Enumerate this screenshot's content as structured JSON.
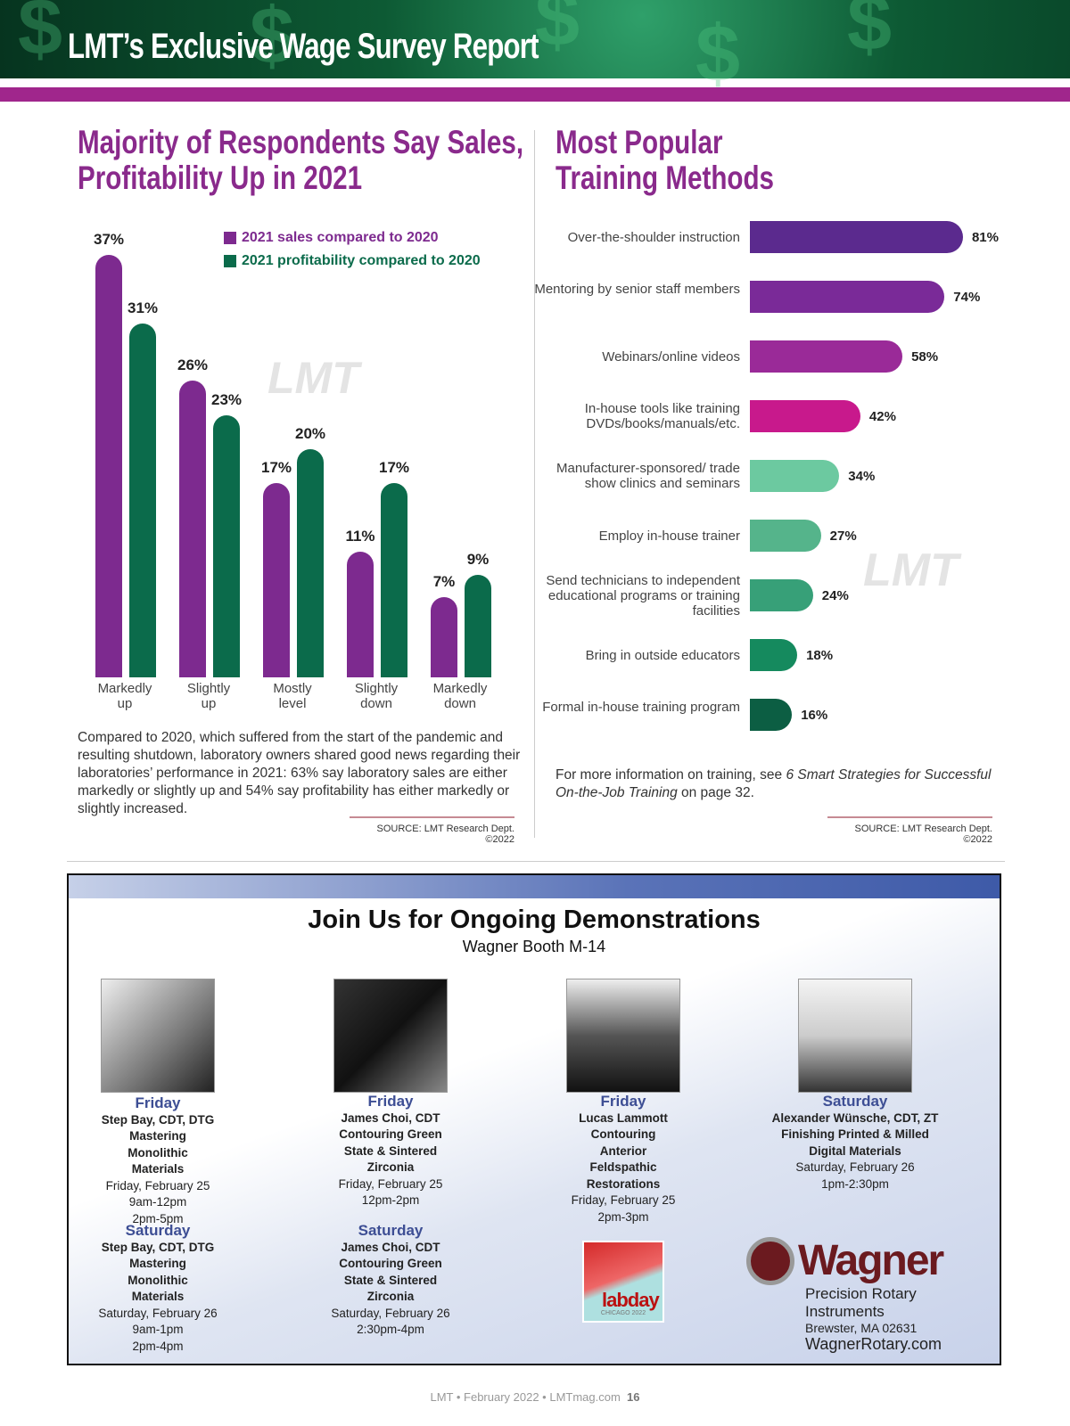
{
  "header": {
    "title": "LMT’s Exclusive Wage Survey Report"
  },
  "left": {
    "title_line1": "Majority of Respondents Say Sales,",
    "title_line2": "Profitability Up in 2021",
    "paragraph": "Compared to 2020, which suffered from the start of the pandemic and resulting shutdown, laboratory owners shared good news regarding their laboratories’ performance in 2021: 63% say laboratory sales are either markedly or slightly up and 54% say profitability has either markedly or slightly increased.",
    "source": "SOURCE: LMT Research Dept. ©2022",
    "watermark": "LMT"
  },
  "right": {
    "title_line1": "Most Popular",
    "title_line2": "Training Methods",
    "note_prefix": "For more information on training, see ",
    "note_italic": "6 Smart Strategies for Successful On-the-Job Training",
    "note_suffix": " on page 32.",
    "source": "SOURCE: LMT Research Dept. ©2022",
    "watermark": "LMT"
  },
  "chart_data": [
    {
      "type": "bar",
      "title": "Majority of Respondents Say Sales, Profitability Up in 2021",
      "categories": [
        "Markedly up",
        "Slightly up",
        "Mostly level",
        "Slightly down",
        "Markedly down"
      ],
      "series": [
        {
          "name": "2021 sales compared to 2020",
          "color": "#7d2a8f",
          "values": [
            37,
            26,
            17,
            11,
            7
          ],
          "labels": [
            "37%",
            "26%",
            "17%",
            "11%",
            "7%"
          ]
        },
        {
          "name": "2021 profitability compared to 2020",
          "color": "#0b6b4b",
          "values": [
            31,
            23,
            20,
            17,
            9
          ],
          "labels": [
            "31%",
            "23%",
            "20%",
            "17%",
            "9%"
          ]
        }
      ],
      "ylim": [
        0,
        40
      ],
      "legend": "top-right",
      "grid": false
    },
    {
      "type": "bar",
      "orientation": "horizontal",
      "title": "Most Popular Training Methods",
      "categories": [
        "Over-the-shoulder instruction",
        "Mentoring by senior staff members",
        "Webinars/online videos",
        "In-house tools like training DVDs/books/manuals/etc.",
        "Manufacturer-sponsored/ trade show clinics and seminars",
        "Employ in-house trainer",
        "Send technicians to independent educational programs or training facilities",
        "Bring in outside educators",
        "Formal in-house training program"
      ],
      "values": [
        81,
        74,
        58,
        42,
        34,
        27,
        24,
        18,
        16
      ],
      "labels": [
        "81%",
        "74%",
        "58%",
        "42%",
        "34%",
        "27%",
        "24%",
        "18%",
        "16%"
      ],
      "colors": [
        "#5b2a8e",
        "#7a2a98",
        "#9a2a98",
        "#c8198c",
        "#6cc9a0",
        "#55b48b",
        "#37a078",
        "#158a5e",
        "#0c5e43"
      ],
      "xlim": [
        0,
        100
      ]
    }
  ],
  "ad": {
    "title": "Join Us for Ongoing Demonstrations",
    "subtitle": "Wagner Booth M-14",
    "sessions": [
      {
        "day": "Friday",
        "presenter": "Step Bay, CDT, DTG",
        "topic": "Mastering Monolithic Materials",
        "date": "Friday, February 25",
        "times": [
          "9am-12pm",
          "2pm-5pm"
        ]
      },
      {
        "day": "Friday",
        "presenter": "James Choi, CDT",
        "topic": "Contouring Green State & Sintered Zirconia",
        "date": "Friday, February 25",
        "times": [
          "12pm-2pm"
        ]
      },
      {
        "day": "Friday",
        "presenter": "Lucas Lammott",
        "topic": "Contouring Anterior Feldspathic Restorations",
        "date": "Friday, February 25",
        "times": [
          "2pm-3pm"
        ]
      },
      {
        "day": "Saturday",
        "presenter": "Alexander Wünsche, CDT, ZT",
        "topic": "Finishing Printed & Milled Digital Materials",
        "date": "Saturday, February 26",
        "times": [
          "1pm-2:30pm"
        ]
      },
      {
        "day": "Saturday",
        "presenter": "Step Bay, CDT, DTG",
        "topic": "Mastering Monolithic Materials",
        "date": "Saturday, February 26",
        "times": [
          "9am-1pm",
          "2pm-4pm"
        ]
      },
      {
        "day": "Saturday",
        "presenter": "James Choi, CDT",
        "topic": "Contouring Green State & Sintered Zirconia",
        "date": "Saturday, February 26",
        "times": [
          "2:30pm-4pm"
        ]
      }
    ],
    "labday": "labday",
    "labday_sub": "CHICAGO 2022",
    "brand": "Wagner",
    "tagline": "Precision Rotary Instruments",
    "address": "Brewster, MA 02631",
    "website": "WagnerRotary.com"
  },
  "footer": {
    "text": "LMT  •  February 2022  •  LMTmag.com",
    "page": "16"
  }
}
